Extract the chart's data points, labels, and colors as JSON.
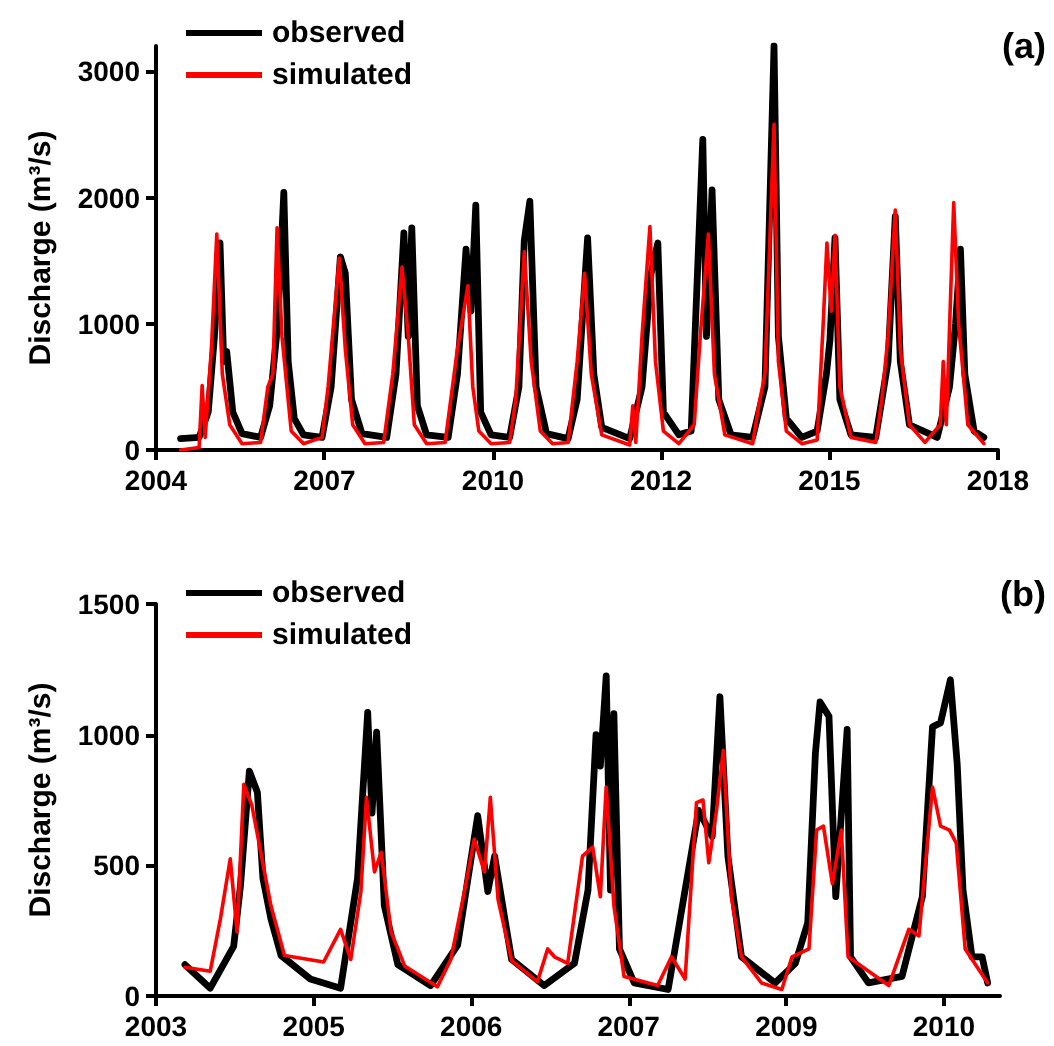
{
  "chart_data": [
    {
      "type": "line",
      "ylabel": "Discharge (m³/s)",
      "annotations": [
        "(a)"
      ],
      "legend": "top left",
      "grid": false,
      "marker": "none",
      "line_style": "solid",
      "xlim": [
        "2004-08-08",
        "2018-04-17"
      ],
      "xticks": [
        {
          "value": "2004-08-08",
          "label": "2004"
        },
        {
          "value": "2007-05-05",
          "label": "2007"
        },
        {
          "value": "2010-01-30",
          "label": "2010"
        },
        {
          "value": "2012-10-24",
          "label": "2012"
        },
        {
          "value": "2015-07-21",
          "label": "2015"
        },
        {
          "value": "2018-04-17",
          "label": "2018"
        }
      ],
      "ylim": [
        0,
        3200
      ],
      "yticks": [
        0,
        1000,
        2000,
        3000
      ],
      "series": [
        {
          "name": "observed",
          "color": "#000000",
          "x": [
            "2005-01-01",
            "2005-04-21",
            "2005-06-14",
            "2005-07-21",
            "2005-08-23",
            "2005-09-14",
            "2005-10-02",
            "2005-11-07",
            "2006-01-01",
            "2006-04-21",
            "2006-06-14",
            "2006-08-01",
            "2006-09-06",
            "2006-10-02",
            "2006-11-07",
            "2007-01-01",
            "2007-04-21",
            "2007-06-14",
            "2007-08-08",
            "2007-09-06",
            "2007-10-13",
            "2007-12-14",
            "2008-05-09",
            "2008-07-03",
            "2008-08-19",
            "2008-09-14",
            "2008-10-05",
            "2008-11-07",
            "2009-01-01",
            "2009-05-09",
            "2009-07-03",
            "2009-08-23",
            "2009-09-21",
            "2009-10-20",
            "2009-11-18",
            "2010-01-19",
            "2010-05-09",
            "2010-07-03",
            "2010-08-04",
            "2010-09-06",
            "2010-10-13",
            "2010-12-14",
            "2011-04-21",
            "2011-06-14",
            "2011-08-15",
            "2011-09-21",
            "2011-11-07",
            "2012-04-21",
            "2012-07-03",
            "2012-08-26",
            "2012-10-05",
            "2012-11-07",
            "2013-02-07",
            "2013-04-21",
            "2013-06-29",
            "2013-07-21",
            "2013-08-23",
            "2013-10-02",
            "2013-12-14",
            "2014-04-21",
            "2014-07-03",
            "2014-08-26",
            "2014-09-21",
            "2014-11-07",
            "2015-02-07",
            "2015-05-09",
            "2015-07-03",
            "2015-07-24",
            "2015-08-23",
            "2015-09-21",
            "2015-11-26",
            "2016-04-21",
            "2016-07-03",
            "2016-08-15",
            "2016-09-14",
            "2016-11-07",
            "2017-04-21",
            "2017-07-03",
            "2017-08-08",
            "2017-09-06",
            "2017-10-02",
            "2017-11-26",
            "2018-01-23"
          ],
          "values": [
            90,
            100,
            300,
            900,
            1640,
            700,
            780,
            300,
            130,
            100,
            350,
            1000,
            2040,
            700,
            250,
            120,
            100,
            500,
            1530,
            1400,
            400,
            130,
            100,
            600,
            1720,
            900,
            1760,
            350,
            120,
            100,
            600,
            1590,
            1100,
            1940,
            300,
            120,
            100,
            500,
            1660,
            1970,
            500,
            130,
            90,
            400,
            1680,
            600,
            180,
            90,
            500,
            1400,
            1640,
            300,
            120,
            150,
            2460,
            900,
            2060,
            400,
            120,
            100,
            500,
            3200,
            900,
            250,
            100,
            150,
            600,
            870,
            1680,
            400,
            120,
            100,
            700,
            1850,
            700,
            200,
            100,
            500,
            1000,
            1590,
            600,
            150,
            100
          ]
        },
        {
          "name": "simulated",
          "color": "#ff0000",
          "x": [
            "2005-01-01",
            "2005-04-21",
            "2005-05-09",
            "2005-05-27",
            "2005-07-03",
            "2005-08-04",
            "2005-09-06",
            "2005-10-20",
            "2006-01-01",
            "2006-04-21",
            "2006-06-03",
            "2006-07-03",
            "2006-07-28",
            "2006-08-26",
            "2006-10-20",
            "2007-01-01",
            "2007-04-21",
            "2007-05-27",
            "2007-08-01",
            "2007-09-06",
            "2007-10-20",
            "2008-01-01",
            "2008-04-21",
            "2008-06-14",
            "2008-08-08",
            "2008-09-14",
            "2008-10-20",
            "2009-01-01",
            "2009-04-21",
            "2009-07-03",
            "2009-09-03",
            "2009-10-02",
            "2009-11-07",
            "2010-01-19",
            "2010-05-09",
            "2010-06-14",
            "2010-08-04",
            "2010-09-14",
            "2010-11-07",
            "2011-01-19",
            "2011-04-21",
            "2011-06-14",
            "2011-07-28",
            "2011-09-06",
            "2011-11-07",
            "2012-04-21",
            "2012-05-09",
            "2012-05-27",
            "2012-07-03",
            "2012-08-19",
            "2012-09-21",
            "2012-11-07",
            "2013-02-07",
            "2013-05-09",
            "2013-06-14",
            "2013-08-01",
            "2013-09-06",
            "2013-11-07",
            "2014-04-21",
            "2014-05-27",
            "2014-07-03",
            "2014-08-26",
            "2014-09-21",
            "2014-11-07",
            "2015-02-07",
            "2015-05-09",
            "2015-06-14",
            "2015-07-06",
            "2015-08-01",
            "2015-08-23",
            "2015-09-21",
            "2015-11-26",
            "2016-04-21",
            "2016-05-27",
            "2016-07-03",
            "2016-08-15",
            "2016-09-14",
            "2016-11-07",
            "2017-02-07",
            "2017-05-09",
            "2017-05-27",
            "2017-06-14",
            "2017-07-28",
            "2017-08-26",
            "2017-10-20",
            "2018-01-23"
          ],
          "values": [
            0,
            20,
            510,
            100,
            800,
            1710,
            600,
            200,
            50,
            60,
            500,
            600,
            1760,
            900,
            150,
            50,
            100,
            500,
            1520,
            800,
            200,
            50,
            60,
            600,
            1450,
            900,
            200,
            50,
            60,
            800,
            1300,
            500,
            150,
            50,
            60,
            400,
            1570,
            700,
            150,
            50,
            60,
            700,
            1400,
            600,
            120,
            40,
            350,
            60,
            900,
            1770,
            700,
            150,
            50,
            200,
            900,
            1710,
            600,
            120,
            50,
            350,
            600,
            2580,
            700,
            150,
            50,
            80,
            1000,
            1640,
            1100,
            1700,
            500,
            100,
            60,
            400,
            900,
            1900,
            800,
            200,
            60,
            200,
            700,
            200,
            1960,
            1000,
            200,
            50
          ]
        }
      ]
    },
    {
      "type": "line",
      "ylabel": "Discharge (m³/s)",
      "annotations": [
        "(b)"
      ],
      "legend": "top left",
      "grid": false,
      "marker": "none",
      "line_style": "solid",
      "xlim": [
        "2003-09-14",
        "2011-03-15"
      ],
      "xticks": [
        {
          "value": "2003-09-14",
          "label": "2003"
        },
        {
          "value": "2005-02-07",
          "label": "2005"
        },
        {
          "value": "2006-07-03",
          "label": "2006"
        },
        {
          "value": "2007-11-26",
          "label": "2007"
        },
        {
          "value": "2009-04-21",
          "label": "2009"
        },
        {
          "value": "2010-09-14",
          "label": "2010"
        }
      ],
      "ylim": [
        0,
        1500
      ],
      "yticks": [
        0,
        500,
        1000,
        1500
      ],
      "series": [
        {
          "name": "observed",
          "color": "#000000",
          "x": [
            "2003-12-17",
            "2004-03-08",
            "2004-05-23",
            "2004-06-14",
            "2004-07-13",
            "2004-08-08",
            "2004-08-26",
            "2004-09-21",
            "2004-10-24",
            "2005-01-27",
            "2005-05-05",
            "2005-06-29",
            "2005-08-01",
            "2005-08-15",
            "2005-08-30",
            "2005-09-24",
            "2005-11-07",
            "2006-02-21",
            "2006-05-20",
            "2006-07-24",
            "2006-08-26",
            "2006-09-17",
            "2006-10-20",
            "2006-11-11",
            "2007-02-25",
            "2007-06-03",
            "2007-07-17",
            "2007-08-12",
            "2007-08-26",
            "2007-09-14",
            "2007-09-28",
            "2007-10-09",
            "2007-10-27",
            "2007-12-14",
            "2008-04-02",
            "2008-07-10",
            "2008-08-23",
            "2008-09-17",
            "2008-10-13",
            "2008-11-26",
            "2009-03-15",
            "2009-05-20",
            "2009-06-29",
            "2009-07-24",
            "2009-08-08",
            "2009-09-06",
            "2009-09-28",
            "2009-11-04",
            "2009-11-15",
            "2010-01-12",
            "2010-05-01",
            "2010-07-06",
            "2010-08-08",
            "2010-09-03",
            "2010-10-05",
            "2010-10-27",
            "2010-11-15",
            "2010-12-14",
            "2011-01-16",
            "2011-02-03"
          ],
          "values": [
            120,
            30,
            190,
            420,
            860,
            780,
            450,
            295,
            155,
            65,
            30,
            450,
            1085,
            700,
            1010,
            345,
            120,
            40,
            195,
            690,
            400,
            535,
            295,
            140,
            40,
            125,
            405,
            1000,
            880,
            1225,
            405,
            1080,
            180,
            50,
            25,
            710,
            610,
            1145,
            535,
            150,
            50,
            125,
            280,
            930,
            1125,
            1070,
            380,
            1020,
            150,
            50,
            75,
            380,
            1030,
            1045,
            1210,
            890,
            405,
            150,
            150,
            50
          ]
        },
        {
          "name": "simulated",
          "color": "#ff0000",
          "x": [
            "2003-12-17",
            "2004-03-08",
            "2004-04-10",
            "2004-05-12",
            "2004-06-03",
            "2004-06-25",
            "2004-07-21",
            "2004-08-19",
            "2004-09-21",
            "2004-11-04",
            "2005-03-11",
            "2005-05-05",
            "2005-06-07",
            "2005-07-10",
            "2005-07-28",
            "2005-08-23",
            "2005-09-14",
            "2005-10-16",
            "2005-11-29",
            "2006-03-15",
            "2006-04-28",
            "2006-06-11",
            "2006-07-13",
            "2006-08-15",
            "2006-09-03",
            "2006-09-28",
            "2006-11-11",
            "2007-02-03",
            "2007-03-08",
            "2007-03-30",
            "2007-05-12",
            "2007-06-29",
            "2007-08-01",
            "2007-08-26",
            "2007-09-14",
            "2007-10-09",
            "2007-11-11",
            "2008-02-28",
            "2008-04-13",
            "2008-05-27",
            "2008-07-03",
            "2008-07-24",
            "2008-08-12",
            "2008-09-06",
            "2008-09-28",
            "2008-10-24",
            "2008-11-26",
            "2009-01-30",
            "2009-04-06",
            "2009-05-09",
            "2009-07-03",
            "2009-07-28",
            "2009-08-19",
            "2009-09-17",
            "2009-10-16",
            "2009-11-07",
            "2010-03-19",
            "2010-05-23",
            "2010-06-25",
            "2010-08-08",
            "2010-09-03",
            "2010-10-02",
            "2010-10-24",
            "2010-11-22",
            "2011-02-03"
          ],
          "values": [
            110,
            95,
            295,
            525,
            245,
            810,
            730,
            550,
            345,
            155,
            130,
            255,
            140,
            400,
            760,
            475,
            550,
            245,
            115,
            35,
            140,
            400,
            600,
            475,
            760,
            370,
            135,
            55,
            180,
            150,
            125,
            535,
            570,
            380,
            800,
            345,
            75,
            40,
            150,
            65,
            740,
            750,
            510,
            710,
            940,
            380,
            150,
            50,
            25,
            150,
            180,
            635,
            650,
            430,
            635,
            150,
            40,
            255,
            230,
            800,
            650,
            635,
            585,
            180,
            50
          ]
        }
      ]
    }
  ]
}
